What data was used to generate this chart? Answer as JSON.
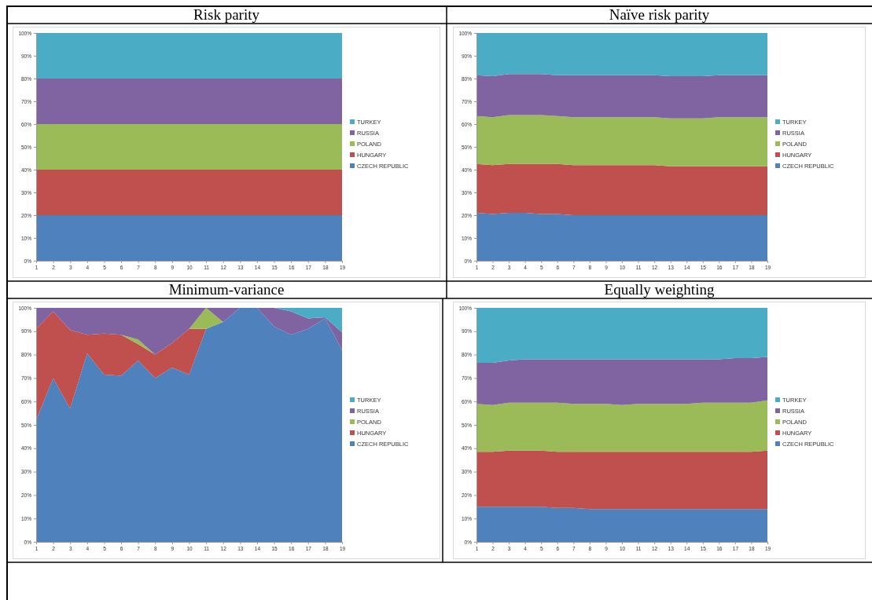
{
  "chart_data": [
    {
      "type": "area",
      "stacked": true,
      "title": "Risk parity",
      "x": [
        1,
        2,
        3,
        4,
        5,
        6,
        7,
        8,
        9,
        10,
        11,
        12,
        13,
        14,
        15,
        16,
        17,
        18,
        19
      ],
      "xlim": [
        1,
        19
      ],
      "xticks": [
        1,
        2,
        3,
        4,
        5,
        6,
        7,
        8,
        9,
        10,
        11,
        12,
        13,
        14,
        15,
        16,
        17,
        18,
        19
      ],
      "ylim": [
        0,
        100
      ],
      "yticks": [
        {
          "value": 0,
          "label": "0%"
        },
        {
          "value": 10,
          "label": "10%"
        },
        {
          "value": 20,
          "label": "20%"
        },
        {
          "value": 30,
          "label": "30%"
        },
        {
          "value": 40,
          "label": "40%"
        },
        {
          "value": 50,
          "label": "50%"
        },
        {
          "value": 60,
          "label": "60%"
        },
        {
          "value": 70,
          "label": "70%"
        },
        {
          "value": 80,
          "label": "80%"
        },
        {
          "value": 90,
          "label": "90%"
        },
        {
          "value": 100,
          "label": "100%"
        }
      ],
      "legend": "right",
      "series": [
        {
          "name": "CZECH REPUBLIC",
          "color": "#4f81bd",
          "values": [
            20,
            20,
            20,
            20,
            20,
            20,
            20,
            20,
            20,
            20,
            20,
            20,
            20,
            20,
            20,
            20,
            20,
            20,
            20
          ]
        },
        {
          "name": "HUNGARY",
          "color": "#c0504d",
          "values": [
            20,
            20,
            20,
            20,
            20,
            20,
            20,
            20,
            20,
            20,
            20,
            20,
            20,
            20,
            20,
            20,
            20,
            20,
            20
          ]
        },
        {
          "name": "POLAND",
          "color": "#9bbb59",
          "values": [
            20,
            20,
            20,
            20,
            20,
            20,
            20,
            20,
            20,
            20,
            20,
            20,
            20,
            20,
            20,
            20,
            20,
            20,
            20
          ]
        },
        {
          "name": "RUSSIA",
          "color": "#8064a2",
          "values": [
            20,
            20,
            20,
            20,
            20,
            20,
            20,
            20,
            20,
            20,
            20,
            20,
            20,
            20,
            20,
            20,
            20,
            20,
            20
          ]
        },
        {
          "name": "TURKEY",
          "color": "#4bacc6",
          "values": [
            20,
            20,
            20,
            20,
            20,
            20,
            20,
            20,
            20,
            20,
            20,
            20,
            20,
            20,
            20,
            20,
            20,
            20,
            20
          ]
        }
      ]
    },
    {
      "type": "area",
      "stacked": true,
      "title": "Naïve risk parity",
      "x": [
        1,
        2,
        3,
        4,
        5,
        6,
        7,
        8,
        9,
        10,
        11,
        12,
        13,
        14,
        15,
        16,
        17,
        18,
        19
      ],
      "xlim": [
        1,
        19
      ],
      "xticks": [
        1,
        2,
        3,
        4,
        5,
        6,
        7,
        8,
        9,
        10,
        11,
        12,
        13,
        14,
        15,
        16,
        17,
        18,
        19
      ],
      "ylim": [
        0,
        100
      ],
      "yticks": [
        {
          "value": 0,
          "label": "0%"
        },
        {
          "value": 10,
          "label": "10%"
        },
        {
          "value": 20,
          "label": "20%"
        },
        {
          "value": 30,
          "label": "30%"
        },
        {
          "value": 40,
          "label": "40%"
        },
        {
          "value": 50,
          "label": "50%"
        },
        {
          "value": 60,
          "label": "60%"
        },
        {
          "value": 70,
          "label": "70%"
        },
        {
          "value": 80,
          "label": "80%"
        },
        {
          "value": 90,
          "label": "90%"
        },
        {
          "value": 100,
          "label": "100%"
        }
      ],
      "legend": "right",
      "series": [
        {
          "name": "CZECH REPUBLIC",
          "color": "#4f81bd",
          "values": [
            21,
            20.5,
            21,
            21,
            20.5,
            20.5,
            20,
            20,
            20,
            20,
            20,
            20,
            20,
            20,
            20,
            20,
            20,
            20,
            20
          ]
        },
        {
          "name": "HUNGARY",
          "color": "#c0504d",
          "values": [
            21.5,
            21.5,
            21.5,
            21.5,
            22,
            22,
            22,
            22,
            22,
            22,
            22,
            22,
            21.5,
            21.5,
            21.5,
            21.5,
            21.5,
            21.5,
            21.5
          ]
        },
        {
          "name": "POLAND",
          "color": "#9bbb59",
          "values": [
            21,
            21,
            21.5,
            21.5,
            21.5,
            21,
            21,
            21,
            21,
            21,
            21,
            21,
            21,
            21,
            21,
            21.5,
            21.5,
            21.5,
            21.5
          ]
        },
        {
          "name": "RUSSIA",
          "color": "#8064a2",
          "values": [
            18,
            18,
            18,
            18,
            18,
            18,
            18.5,
            18.5,
            18.5,
            18.5,
            18.5,
            18.5,
            18.5,
            18.5,
            18.5,
            18.5,
            18.5,
            18.5,
            18.5
          ]
        },
        {
          "name": "TURKEY",
          "color": "#4bacc6",
          "values": [
            18.5,
            19,
            18,
            18,
            18,
            18.5,
            18.5,
            18.5,
            18.5,
            18.5,
            18.5,
            18.5,
            19,
            19,
            19,
            18.5,
            18.5,
            18.5,
            18.5
          ]
        }
      ]
    },
    {
      "type": "area",
      "stacked": true,
      "title": "Minimum-variance",
      "x": [
        1,
        2,
        3,
        4,
        5,
        6,
        7,
        8,
        9,
        10,
        11,
        12,
        13,
        14,
        15,
        16,
        17,
        18,
        19
      ],
      "xlim": [
        1,
        19
      ],
      "xticks": [
        1,
        2,
        3,
        4,
        5,
        6,
        7,
        8,
        9,
        10,
        11,
        12,
        13,
        14,
        15,
        16,
        17,
        18,
        19
      ],
      "ylim": [
        0,
        100
      ],
      "yticks": [
        {
          "value": 0,
          "label": "0%"
        },
        {
          "value": 10,
          "label": "10%"
        },
        {
          "value": 20,
          "label": "20%"
        },
        {
          "value": 30,
          "label": "30%"
        },
        {
          "value": 40,
          "label": "40%"
        },
        {
          "value": 50,
          "label": "50%"
        },
        {
          "value": 60,
          "label": "60%"
        },
        {
          "value": 70,
          "label": "70%"
        },
        {
          "value": 80,
          "label": "80%"
        },
        {
          "value": 90,
          "label": "90%"
        },
        {
          "value": 100,
          "label": "100%"
        }
      ],
      "legend": "right",
      "series": [
        {
          "name": "CZECH REPUBLIC",
          "color": "#4f81bd",
          "values": [
            52,
            70,
            57,
            80.5,
            71.5,
            71,
            77.5,
            70,
            74.5,
            71.5,
            91,
            94,
            100,
            100,
            92,
            88.5,
            91,
            95.5,
            82
          ]
        },
        {
          "name": "HUNGARY",
          "color": "#c0504d",
          "values": [
            39,
            28.5,
            33.5,
            8,
            17.5,
            17.5,
            7,
            10,
            10.5,
            19.5,
            0,
            null,
            null,
            null,
            null,
            null,
            null,
            null,
            null
          ]
        },
        {
          "name": "POLAND",
          "color": "#9bbb59",
          "values": [
            null,
            null,
            null,
            null,
            null,
            0,
            2,
            0,
            null,
            0,
            9,
            0,
            null,
            null,
            null,
            null,
            null,
            null,
            null
          ]
        },
        {
          "name": "RUSSIA",
          "color": "#8064a2",
          "values": [
            9,
            1.5,
            9.5,
            11.5,
            11,
            11.5,
            13.5,
            20,
            15,
            9,
            0,
            6,
            0,
            0,
            8,
            10,
            4.5,
            0.5,
            7.5
          ]
        },
        {
          "name": "TURKEY",
          "color": "#4bacc6",
          "values": [
            null,
            null,
            null,
            null,
            null,
            null,
            null,
            null,
            null,
            null,
            null,
            null,
            null,
            null,
            0,
            1.5,
            4.5,
            4,
            10.5
          ]
        }
      ]
    },
    {
      "type": "area",
      "stacked": true,
      "title": "Equally weighting",
      "x": [
        1,
        2,
        3,
        4,
        5,
        6,
        7,
        8,
        9,
        10,
        11,
        12,
        13,
        14,
        15,
        16,
        17,
        18,
        19
      ],
      "xlim": [
        1,
        19
      ],
      "xticks": [
        1,
        2,
        3,
        4,
        5,
        6,
        7,
        8,
        9,
        10,
        11,
        12,
        13,
        14,
        15,
        16,
        17,
        18,
        19
      ],
      "ylim": [
        0,
        100
      ],
      "yticks": [
        {
          "value": 0,
          "label": "0%"
        },
        {
          "value": 10,
          "label": "10%"
        },
        {
          "value": 20,
          "label": "20%"
        },
        {
          "value": 30,
          "label": "30%"
        },
        {
          "value": 40,
          "label": "40%"
        },
        {
          "value": 50,
          "label": "50%"
        },
        {
          "value": 60,
          "label": "60%"
        },
        {
          "value": 70,
          "label": "70%"
        },
        {
          "value": 80,
          "label": "80%"
        },
        {
          "value": 90,
          "label": "90%"
        },
        {
          "value": 100,
          "label": "100%"
        }
      ],
      "legend": "right",
      "series": [
        {
          "name": "CZECH REPUBLIC",
          "color": "#4f81bd",
          "values": [
            15,
            15,
            15,
            15,
            15,
            14.5,
            14.5,
            14,
            14,
            14,
            14,
            14,
            14,
            14,
            14,
            14,
            14,
            14,
            14
          ]
        },
        {
          "name": "HUNGARY",
          "color": "#c0504d",
          "values": [
            23.5,
            23.5,
            24,
            24,
            24,
            24,
            24,
            24.5,
            24.5,
            24.5,
            24.5,
            24.5,
            24.5,
            24.5,
            24.5,
            24.5,
            24.5,
            24.5,
            25
          ]
        },
        {
          "name": "POLAND",
          "color": "#9bbb59",
          "values": [
            20.5,
            20,
            20.5,
            20.5,
            20.5,
            21,
            20.5,
            20.5,
            20.5,
            20,
            20.5,
            20.5,
            20.5,
            20.5,
            21,
            21,
            21,
            21,
            21.5
          ]
        },
        {
          "name": "RUSSIA",
          "color": "#8064a2",
          "values": [
            17.5,
            18,
            18,
            18.5,
            18.5,
            18.5,
            19,
            19,
            19,
            19.5,
            19,
            19,
            19,
            19,
            18.5,
            18.5,
            19,
            19,
            18.5
          ]
        },
        {
          "name": "TURKEY",
          "color": "#4bacc6",
          "values": [
            23.5,
            23.5,
            22.5,
            22,
            22,
            22,
            22,
            22,
            22,
            22,
            22,
            22,
            22,
            22,
            22,
            22,
            21.5,
            21.5,
            21
          ]
        }
      ]
    }
  ]
}
